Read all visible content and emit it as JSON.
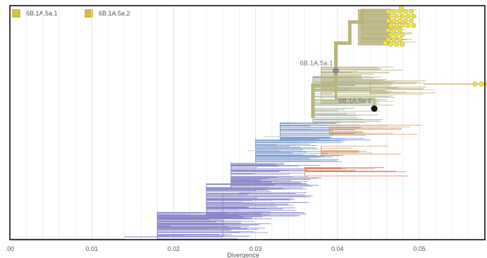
{
  "legend": [
    {
      "label": "6B.1A.5a.1",
      "color": "#cfc24c"
    },
    {
      "label": "6B.1A.5a.2",
      "color": "#dbb841"
    }
  ],
  "colors": {
    "axis": "#000000",
    "grid": "#e4e4e4",
    "tree_purple": "#8a87c9",
    "tree_blue": "#7f9ed1",
    "tree_olive": "#bdb88a",
    "tree_green": "#aab59a",
    "tree_orange": "#d9a073",
    "tree_red": "#d98066",
    "tip_yellow": "#e8e24a",
    "node_grey": "#8c8c8c",
    "node_black": "#111111",
    "base_line": "#c7c7d9"
  },
  "chart_data": {
    "type": "phylogenetic-tree",
    "title": "",
    "xlabel": "Divergence",
    "ylabel": "",
    "xlim": [
      0.0,
      0.058
    ],
    "ylim": [
      0,
      1
    ],
    "grid": true,
    "x_ticks": [
      {
        "value": 0.0,
        "label": ".00"
      },
      {
        "value": 0.01,
        "label": "0.01"
      },
      {
        "value": 0.02,
        "label": "0.02"
      },
      {
        "value": 0.03,
        "label": "0.03"
      },
      {
        "value": 0.04,
        "label": "0.04"
      },
      {
        "value": 0.05,
        "label": "0.05"
      }
    ],
    "clade_labels": [
      {
        "label": "6B.1A.5a.1",
        "x": 0.0398,
        "y": 0.722,
        "node_color": "grey"
      },
      {
        "label": "6B.1A.5a.2",
        "x": 0.0445,
        "y": 0.56,
        "node_color": "black"
      }
    ]
  }
}
